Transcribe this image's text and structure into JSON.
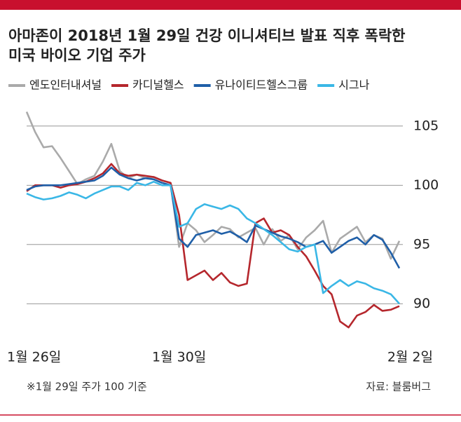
{
  "chart_data": {
    "type": "line",
    "title": [
      "아마존이 2018년 1월 29일 건강 이니셔티브 발표 직후 폭락한",
      "미국 바이오 기업 주가"
    ],
    "note": "※1월 29일 주가 100 기준",
    "source": "자료: 블룸버그",
    "categories": [
      "1월 26일",
      null,
      null,
      null,
      null,
      null,
      null,
      null,
      null,
      null,
      null,
      null,
      null,
      null,
      null,
      null,
      null,
      null,
      "1월 30일",
      null,
      null,
      null,
      null,
      null,
      null,
      null,
      null,
      null,
      null,
      null,
      null,
      null,
      null,
      null,
      null,
      null,
      null,
      null,
      null,
      null,
      null,
      null,
      null,
      null,
      "2월 2일"
    ],
    "ylim": [
      87,
      107
    ],
    "yticks": [
      90,
      95,
      100,
      105
    ],
    "grid": true,
    "series": [
      {
        "name": "엔도인터내셔널",
        "color": "#aaaaaa",
        "values": [
          106.2,
          104.5,
          103.2,
          103.3,
          102.3,
          101.2,
          100.1,
          100.5,
          100.8,
          102.0,
          103.5,
          101.2,
          100.6,
          100.9,
          100.6,
          100.7,
          100.4,
          100.2,
          94.8,
          96.8,
          96.2,
          95.2,
          95.8,
          96.5,
          96.3,
          95.6,
          96.0,
          96.4,
          95.0,
          96.3,
          95.3,
          95.8,
          94.6,
          95.6,
          96.2,
          97.0,
          94.3,
          95.5,
          96.0,
          96.5,
          95.2,
          95.8,
          95.5,
          93.8,
          95.3
        ]
      },
      {
        "name": "카디널헬스",
        "color": "#b5272d",
        "values": [
          99.5,
          100.0,
          100.0,
          100.0,
          99.8,
          100.0,
          100.1,
          100.3,
          100.6,
          101.0,
          101.8,
          101.0,
          100.8,
          100.9,
          100.8,
          100.7,
          100.4,
          100.2,
          97.5,
          92.0,
          92.4,
          92.8,
          92.0,
          92.6,
          91.8,
          91.5,
          91.7,
          96.8,
          97.2,
          96.0,
          96.2,
          95.8,
          94.8,
          94.0,
          92.8,
          91.5,
          90.8,
          88.5,
          88.0,
          89.0,
          89.3,
          89.9,
          89.4,
          89.5,
          89.8
        ]
      },
      {
        "name": "유나이티드헬스그룹",
        "color": "#1f5fa8",
        "values": [
          99.6,
          99.9,
          100.0,
          100.0,
          100.0,
          100.1,
          100.2,
          100.3,
          100.4,
          100.8,
          101.5,
          100.9,
          100.6,
          100.4,
          100.6,
          100.5,
          100.2,
          100.0,
          95.5,
          94.8,
          95.8,
          96.0,
          96.2,
          95.9,
          96.1,
          95.7,
          95.2,
          96.6,
          96.3,
          96.0,
          95.7,
          95.5,
          95.2,
          94.8,
          95.0,
          95.3,
          94.3,
          94.8,
          95.3,
          95.6,
          95.0,
          95.8,
          95.4,
          94.3,
          93.0
        ]
      },
      {
        "name": "시그나",
        "color": "#3ab7e6",
        "values": [
          99.3,
          99.0,
          98.8,
          98.9,
          99.1,
          99.4,
          99.2,
          98.9,
          99.3,
          99.6,
          99.9,
          99.9,
          99.6,
          100.2,
          100.0,
          100.3,
          100.0,
          100.0,
          96.5,
          96.8,
          98.0,
          98.4,
          98.2,
          98.0,
          98.3,
          98.0,
          97.2,
          96.8,
          96.3,
          95.8,
          95.2,
          94.6,
          94.4,
          94.8,
          95.0,
          90.9,
          91.5,
          92.0,
          91.5,
          91.9,
          91.7,
          91.3,
          91.1,
          90.8,
          90.0
        ]
      }
    ]
  }
}
